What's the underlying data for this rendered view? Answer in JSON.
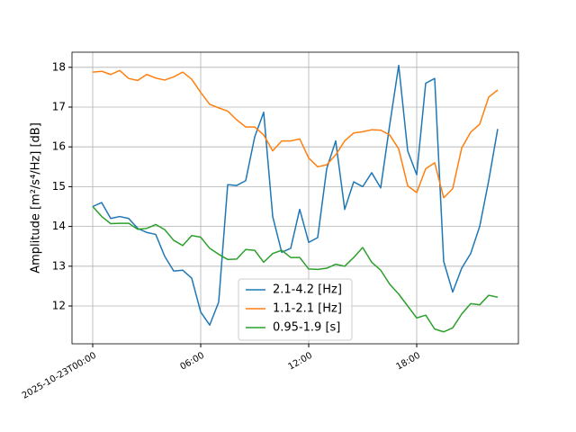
{
  "chart_data": {
    "type": "line",
    "ylabel": "Amplitude [m²/s⁴/Hz] [dB]",
    "x": [
      "2025-10-23T00:00",
      "2025-10-23T00:30",
      "2025-10-23T01:00",
      "2025-10-23T01:30",
      "2025-10-23T02:00",
      "2025-10-23T02:30",
      "2025-10-23T03:00",
      "2025-10-23T03:30",
      "2025-10-23T04:00",
      "2025-10-23T04:30",
      "2025-10-23T05:00",
      "2025-10-23T05:30",
      "2025-10-23T06:00",
      "2025-10-23T06:30",
      "2025-10-23T07:00",
      "2025-10-23T07:30",
      "2025-10-23T08:00",
      "2025-10-23T08:30",
      "2025-10-23T09:00",
      "2025-10-23T09:30",
      "2025-10-23T10:00",
      "2025-10-23T10:30",
      "2025-10-23T11:00",
      "2025-10-23T11:30",
      "2025-10-23T12:00",
      "2025-10-23T12:30",
      "2025-10-23T13:00",
      "2025-10-23T13:30",
      "2025-10-23T14:00",
      "2025-10-23T14:30",
      "2025-10-23T15:00",
      "2025-10-23T15:30",
      "2025-10-23T16:00",
      "2025-10-23T16:30",
      "2025-10-23T17:00",
      "2025-10-23T17:30",
      "2025-10-23T18:00",
      "2025-10-23T18:30",
      "2025-10-23T19:00",
      "2025-10-23T19:30",
      "2025-10-23T20:00",
      "2025-10-23T20:30",
      "2025-10-23T21:00",
      "2025-10-23T21:30",
      "2025-10-23T22:00",
      "2025-10-23T22:30"
    ],
    "series": [
      {
        "name": "2.1-4.2 [Hz]",
        "color": "#1f77b4",
        "values": [
          14.5,
          14.6,
          14.2,
          14.25,
          14.2,
          13.95,
          13.85,
          13.8,
          13.25,
          12.88,
          12.9,
          12.7,
          11.85,
          11.52,
          12.1,
          15.05,
          15.03,
          15.15,
          16.25,
          16.87,
          14.25,
          13.35,
          13.45,
          14.43,
          13.6,
          13.72,
          15.45,
          16.15,
          14.43,
          15.12,
          15.0,
          15.35,
          14.97,
          16.55,
          18.05,
          15.9,
          15.3,
          17.6,
          17.72,
          13.12,
          12.35,
          12.95,
          13.32,
          14.0,
          15.15,
          16.45
        ]
      },
      {
        "name": "1.1-2.1 [Hz]",
        "color": "#ff7f0e",
        "values": [
          17.88,
          17.9,
          17.82,
          17.92,
          17.72,
          17.67,
          17.82,
          17.73,
          17.68,
          17.76,
          17.88,
          17.7,
          17.37,
          17.07,
          16.98,
          16.9,
          16.68,
          16.5,
          16.5,
          16.3,
          15.9,
          16.15,
          16.15,
          16.2,
          15.72,
          15.5,
          15.55,
          15.8,
          16.15,
          16.35,
          16.38,
          16.43,
          16.42,
          16.3,
          15.95,
          15.02,
          14.85,
          15.45,
          15.6,
          14.72,
          14.95,
          15.97,
          16.37,
          16.57,
          17.25,
          17.43
        ]
      },
      {
        "name": "0.95-1.9 [s]",
        "color": "#2ca02c",
        "values": [
          14.5,
          14.25,
          14.07,
          14.08,
          14.08,
          13.93,
          13.95,
          14.05,
          13.92,
          13.65,
          13.52,
          13.77,
          13.73,
          13.45,
          13.3,
          13.17,
          13.18,
          13.42,
          13.4,
          13.1,
          13.32,
          13.4,
          13.22,
          13.22,
          12.93,
          12.92,
          12.95,
          13.05,
          13.0,
          13.22,
          13.47,
          13.1,
          12.9,
          12.55,
          12.3,
          12.0,
          11.7,
          11.77,
          11.42,
          11.35,
          11.45,
          11.8,
          12.06,
          12.03,
          12.27,
          12.22
        ]
      }
    ],
    "xlim": [
      "2025-10-22T22:51",
      "2025-10-23T23:39"
    ],
    "xticks": [
      {
        "value": "2025-10-23T00:00",
        "label": "2025-10-23T00:00"
      },
      {
        "value": "2025-10-23T06:00",
        "label": "06:00"
      },
      {
        "value": "2025-10-23T12:00",
        "label": "12:00"
      },
      {
        "value": "2025-10-23T18:00",
        "label": "18:00"
      }
    ],
    "ylim": [
      11.05,
      18.38
    ],
    "yticks": [
      12,
      13,
      14,
      15,
      16,
      17,
      18
    ],
    "grid": true,
    "legend": "lower center"
  }
}
